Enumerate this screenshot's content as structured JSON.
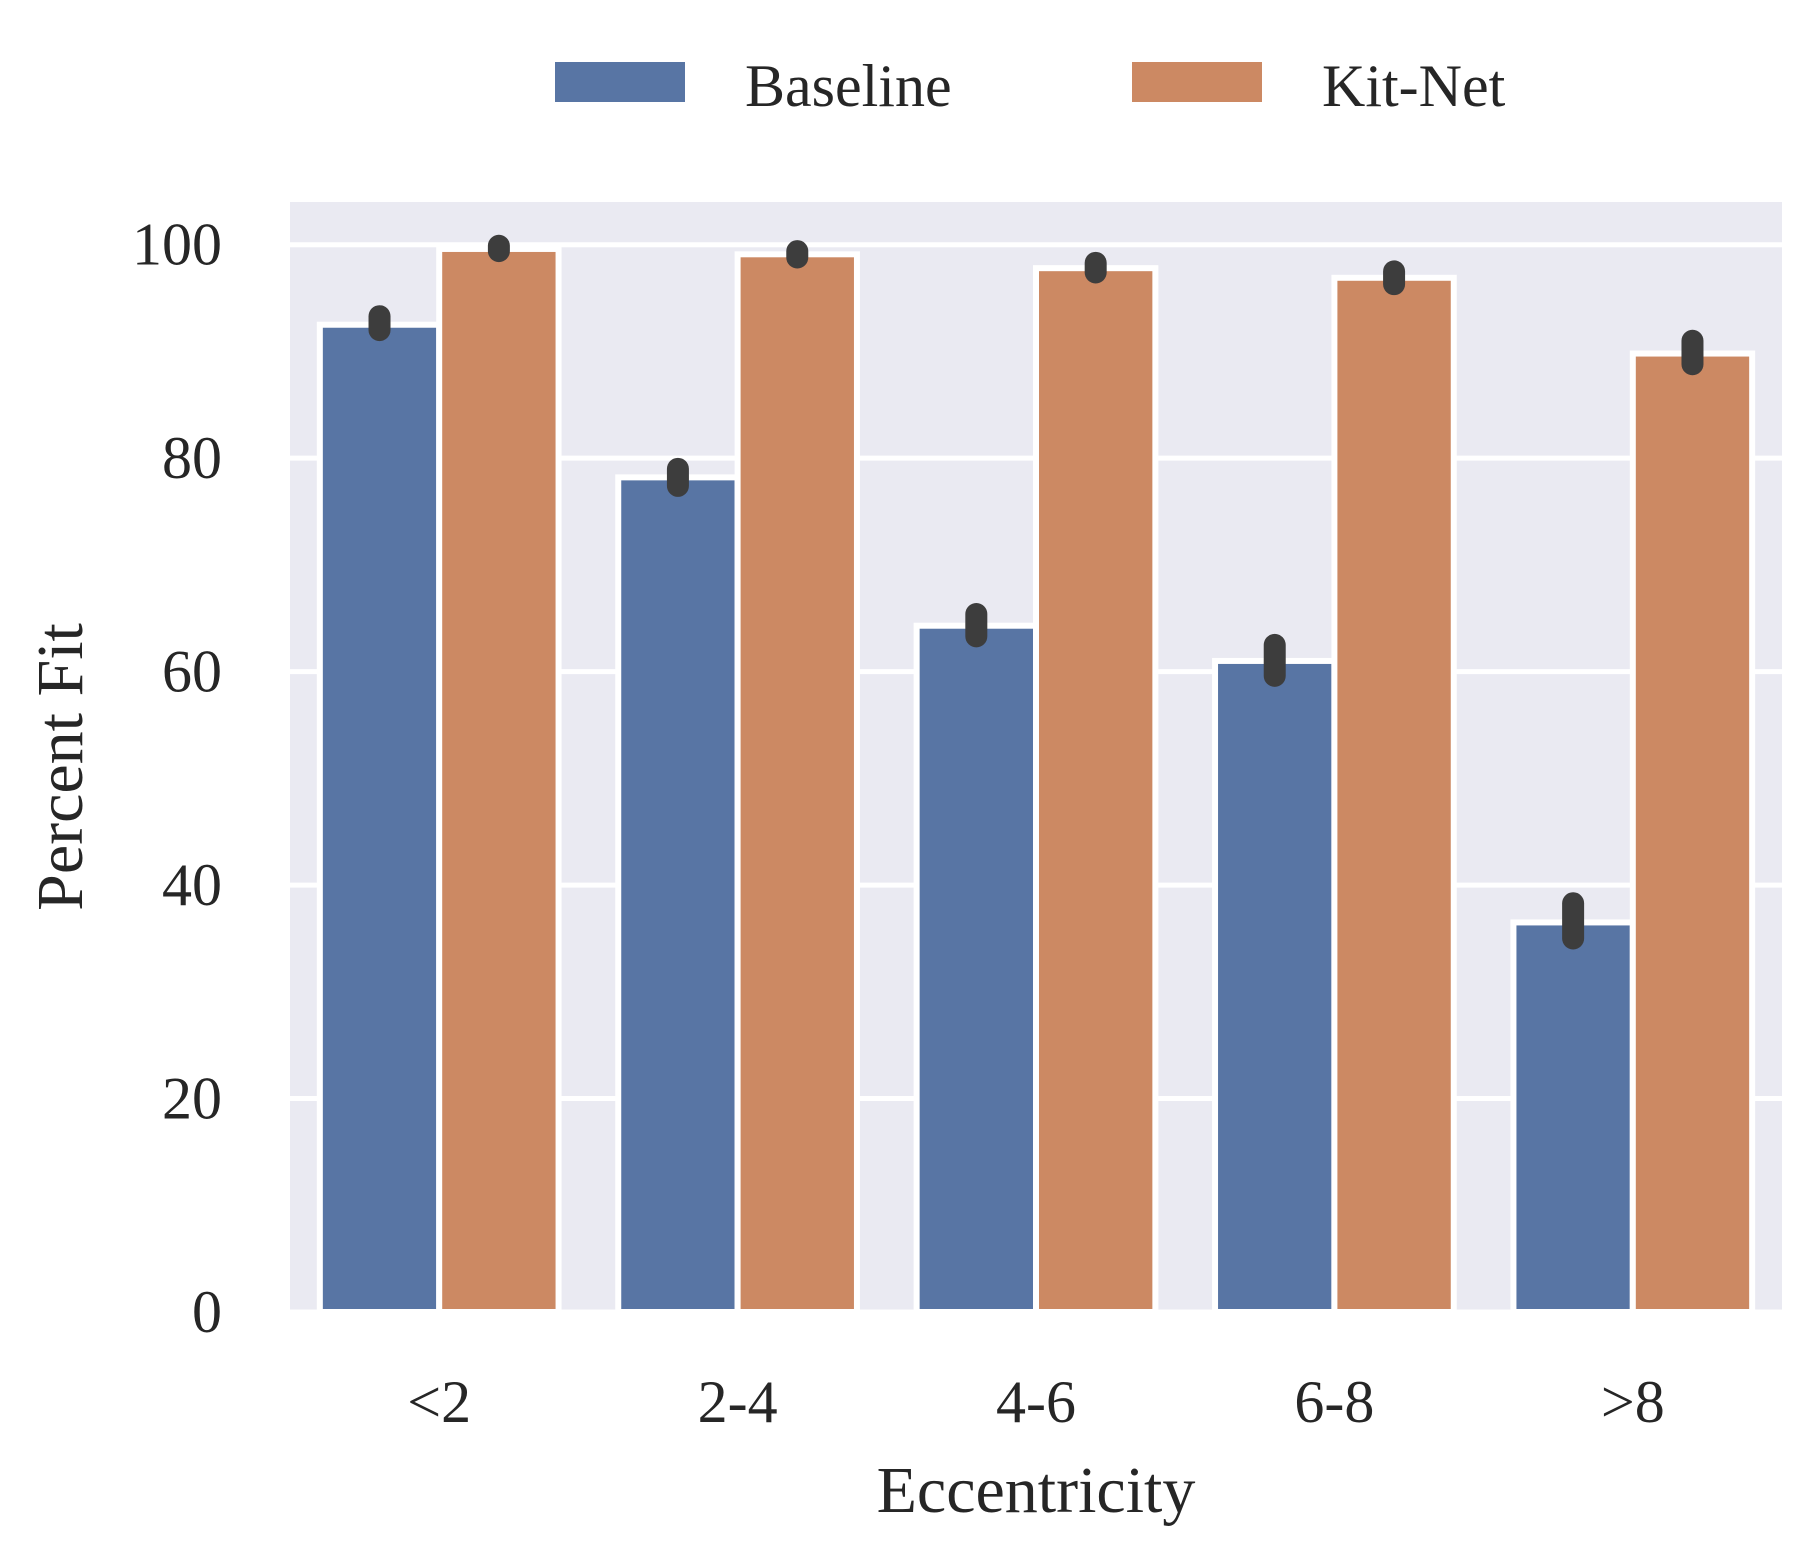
{
  "chart_data": {
    "type": "bar",
    "xlabel": "Eccentricity",
    "ylabel": "Percent Fit",
    "categories": [
      "<2",
      "2-4",
      "4-6",
      "6-8",
      ">8"
    ],
    "series": [
      {
        "name": "Baseline",
        "color": "#5875a4",
        "values": [
          92.5,
          78.2,
          64.3,
          61.0,
          36.5
        ],
        "ci": [
          [
            92.0,
            93.3
          ],
          [
            77.4,
            79.0
          ],
          [
            63.3,
            65.4
          ],
          [
            59.6,
            62.5
          ],
          [
            35.0,
            38.3
          ]
        ]
      },
      {
        "name": "Kit-Net",
        "color": "#cc8963",
        "values": [
          99.6,
          99.1,
          97.8,
          96.9,
          89.8
        ],
        "ci": [
          [
            99.4,
            99.9
          ],
          [
            98.8,
            99.4
          ],
          [
            97.4,
            98.3
          ],
          [
            96.3,
            97.5
          ],
          [
            88.8,
            91.0
          ]
        ]
      }
    ],
    "ylim": [
      0,
      104
    ],
    "yticks": [
      0,
      20,
      40,
      60,
      80,
      100
    ],
    "grid": true,
    "legend": "top-center",
    "background": "#eaeaf2"
  }
}
